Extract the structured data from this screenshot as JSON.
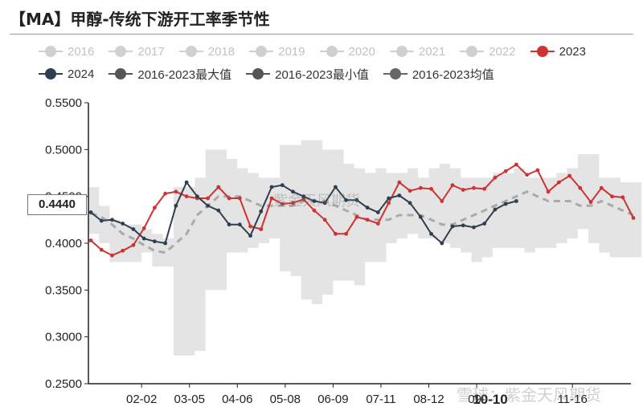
{
  "title": "【MA】甲醇-传统下游开工率季节性",
  "legend": [
    {
      "label": "2016",
      "color": "#cccccc",
      "active": false
    },
    {
      "label": "2017",
      "color": "#cccccc",
      "active": false
    },
    {
      "label": "2018",
      "color": "#cccccc",
      "active": false
    },
    {
      "label": "2019",
      "color": "#cccccc",
      "active": false
    },
    {
      "label": "2020",
      "color": "#cccccc",
      "active": false
    },
    {
      "label": "2021",
      "color": "#cccccc",
      "active": false
    },
    {
      "label": "2022",
      "color": "#cccccc",
      "active": false
    },
    {
      "label": "2023",
      "color": "#cc3333",
      "active": true
    },
    {
      "label": "2024",
      "color": "#2e3f4f",
      "active": true
    },
    {
      "label": "2016-2023最大值",
      "color": "#555555",
      "active": true
    },
    {
      "label": "2016-2023最小值",
      "color": "#555555",
      "active": true
    },
    {
      "label": "2016-2023均值",
      "color": "#666666",
      "active": true
    }
  ],
  "crosshair": {
    "y_readout": "0.4440",
    "x_readout": "10-10"
  },
  "watermarks": [
    "紫金天风期货",
    "雪球：紫金天风期货"
  ],
  "chart_data": {
    "type": "line",
    "ylim": [
      0.25,
      0.55
    ],
    "yticks": [
      "0.2500",
      "0.3000",
      "0.3500",
      "0.4000",
      "0.4500",
      "0.5000",
      "0.5500"
    ],
    "xtick_labels": [
      "02-02",
      "03-05",
      "04-06",
      "05-08",
      "06-09",
      "07-11",
      "08-12",
      "09-",
      "11-16"
    ],
    "xtick_weeks": [
      5,
      9.5,
      14,
      18.5,
      23,
      27.5,
      32,
      36.5,
      45.5
    ],
    "xlim": [
      0,
      51
    ],
    "band_max": [
      0.46,
      0.44,
      0.425,
      0.42,
      0.42,
      0.415,
      0.41,
      0.405,
      0.46,
      0.46,
      0.47,
      0.5,
      0.5,
      0.49,
      0.48,
      0.475,
      0.47,
      0.47,
      0.505,
      0.505,
      0.51,
      0.51,
      0.5,
      0.5,
      0.485,
      0.48,
      0.475,
      0.48,
      0.475,
      0.475,
      0.48,
      0.47,
      0.48,
      0.485,
      0.48,
      0.47,
      0.47,
      0.47,
      0.475,
      0.475,
      0.48,
      0.47,
      0.47,
      0.47,
      0.475,
      0.48,
      0.495,
      0.495,
      0.47,
      0.47,
      0.465,
      0.465
    ],
    "band_min": [
      0.41,
      0.4,
      0.38,
      0.38,
      0.38,
      0.39,
      0.375,
      0.375,
      0.28,
      0.28,
      0.285,
      0.35,
      0.35,
      0.39,
      0.39,
      0.395,
      0.4,
      0.405,
      0.37,
      0.365,
      0.34,
      0.335,
      0.345,
      0.36,
      0.36,
      0.355,
      0.38,
      0.38,
      0.4,
      0.405,
      0.41,
      0.405,
      0.405,
      0.4,
      0.395,
      0.39,
      0.38,
      0.385,
      0.395,
      0.395,
      0.395,
      0.39,
      0.395,
      0.395,
      0.4,
      0.405,
      0.415,
      0.4,
      0.39,
      0.385,
      0.385,
      0.385
    ],
    "series": [
      {
        "name": "2016-2023均值",
        "color": "#aaaaaa",
        "dashed": true,
        "values": [
          0.432,
          0.428,
          0.42,
          0.41,
          0.405,
          0.398,
          0.392,
          0.39,
          0.4,
          0.41,
          0.43,
          0.44,
          0.45,
          0.45,
          0.45,
          0.445,
          0.44,
          0.44,
          0.44,
          0.44,
          0.445,
          0.445,
          0.445,
          0.44,
          0.435,
          0.43,
          0.425,
          0.425,
          0.425,
          0.43,
          0.43,
          0.43,
          0.425,
          0.42,
          0.42,
          0.425,
          0.43,
          0.435,
          0.44,
          0.445,
          0.45,
          0.455,
          0.45,
          0.445,
          0.445,
          0.445,
          0.44,
          0.44,
          0.445,
          0.44,
          0.435,
          0.43
        ]
      },
      {
        "name": "2023",
        "color": "#cc3333",
        "dashed": false,
        "values": [
          0.403,
          0.393,
          0.387,
          0.392,
          0.398,
          0.416,
          0.438,
          0.453,
          0.455,
          0.45,
          0.448,
          0.448,
          0.46,
          0.448,
          0.448,
          0.418,
          0.415,
          0.448,
          0.442,
          0.443,
          0.447,
          0.435,
          0.425,
          0.41,
          0.41,
          0.428,
          0.425,
          0.421,
          0.443,
          0.465,
          0.456,
          0.459,
          0.458,
          0.445,
          0.462,
          0.457,
          0.459,
          0.458,
          0.47,
          0.477,
          0.484,
          0.473,
          0.478,
          0.455,
          0.465,
          0.472,
          0.459,
          0.444,
          0.459,
          0.45,
          0.449,
          0.427
        ]
      },
      {
        "name": "2024",
        "color": "#2e3f4f",
        "dashed": false,
        "values": [
          0.433,
          0.424,
          0.425,
          0.421,
          0.415,
          0.405,
          0.402,
          0.4,
          0.44,
          0.465,
          0.45,
          0.44,
          0.435,
          0.42,
          0.42,
          0.408,
          0.434,
          0.46,
          0.462,
          0.455,
          0.45,
          0.445,
          0.443,
          0.46,
          0.446,
          0.446,
          0.438,
          0.433,
          0.448,
          0.451,
          0.443,
          0.428,
          0.41,
          0.4,
          0.418,
          0.419,
          0.417,
          0.421,
          0.436,
          0.442,
          0.445
        ]
      }
    ]
  }
}
